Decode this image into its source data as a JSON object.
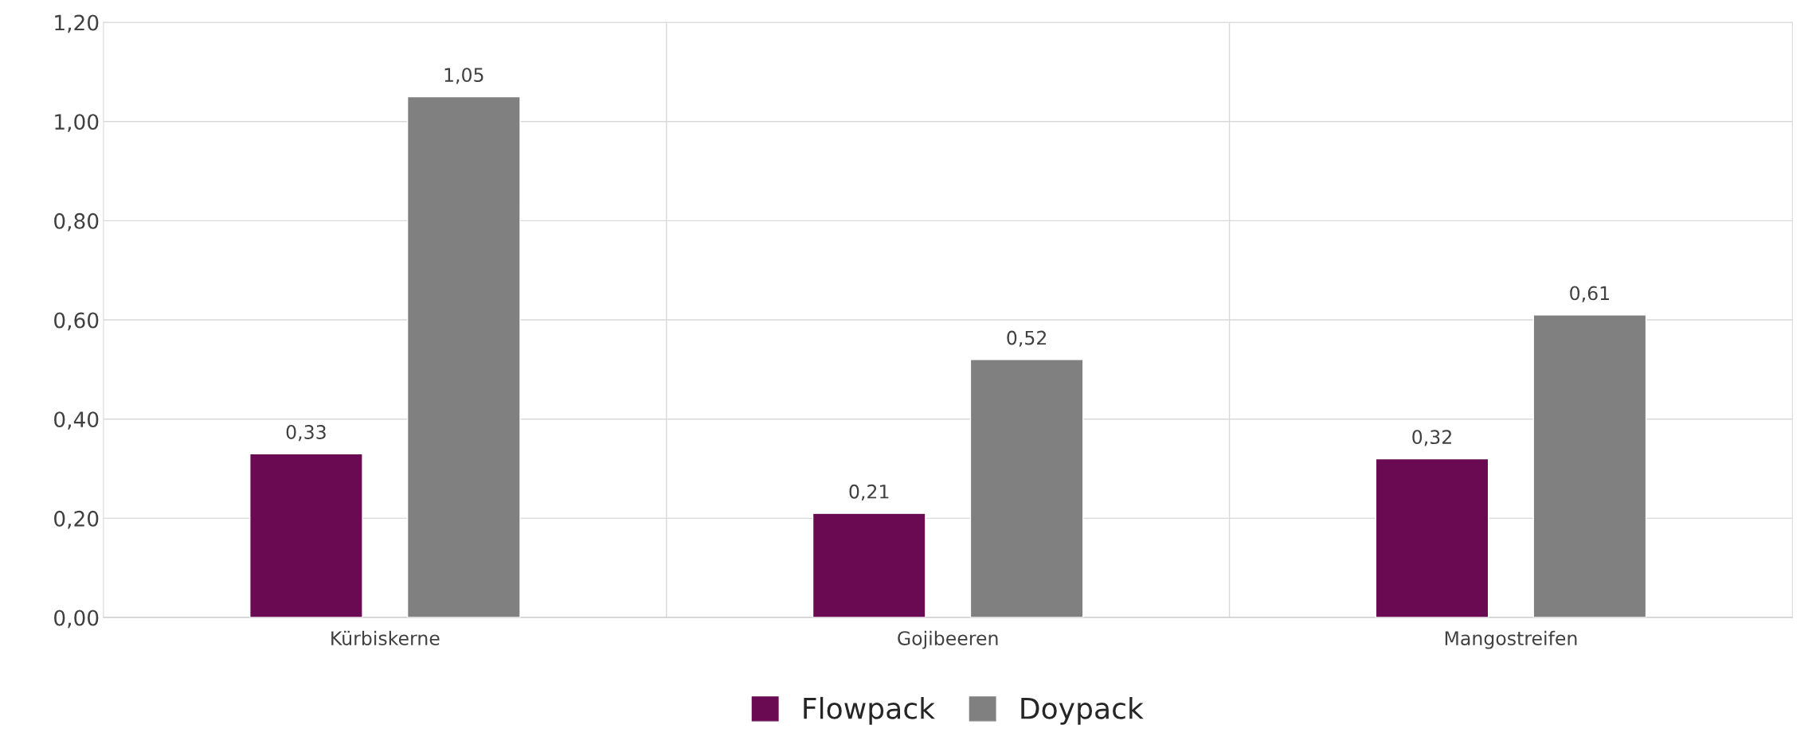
{
  "chart_data": {
    "type": "bar",
    "categories": [
      "Kürbiskerne",
      "Gojibeeren",
      "Mangostreifen"
    ],
    "series": [
      {
        "name": "Flowpack",
        "color": "#6a0a53",
        "values": [
          0.33,
          0.21,
          0.32
        ],
        "value_labels": [
          "0,33",
          "0,21",
          "0,32"
        ]
      },
      {
        "name": "Doypack",
        "color": "#808080",
        "values": [
          1.05,
          0.52,
          0.61
        ],
        "value_labels": [
          "1,05",
          "0,52",
          "0,61"
        ]
      }
    ],
    "ylim": [
      0,
      1.2
    ],
    "yticks": [
      {
        "value": 0,
        "label": "0,00"
      },
      {
        "value": 0.2,
        "label": "0,20"
      },
      {
        "value": 0.4,
        "label": "0,40"
      },
      {
        "value": 0.6,
        "label": "0,60"
      },
      {
        "value": 0.8,
        "label": "0,80"
      },
      {
        "value": 1.0,
        "label": "1,00"
      },
      {
        "value": 1.2,
        "label": "1,20"
      }
    ],
    "grid": true,
    "legend": "bottom"
  }
}
